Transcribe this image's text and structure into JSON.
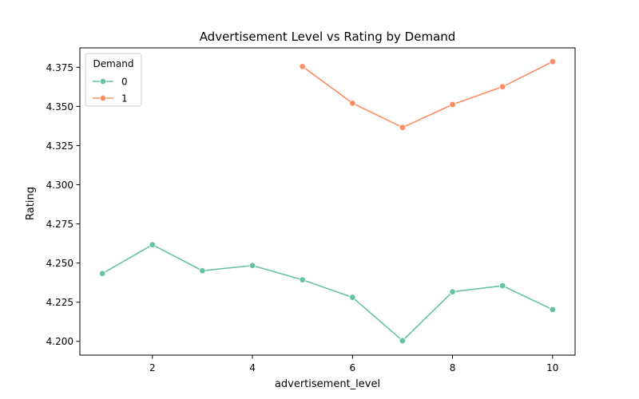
{
  "chart_data": {
    "type": "line",
    "title": "Advertisement Level vs Rating by Demand",
    "xlabel": "advertisement_level",
    "ylabel": "Rating",
    "xlim": [
      0.55,
      10.45
    ],
    "ylim": [
      4.1912,
      4.3874
    ],
    "xticks": [
      2,
      4,
      6,
      8,
      10
    ],
    "xtick_labels": [
      "2",
      "4",
      "6",
      "8",
      "10"
    ],
    "yticks": [
      4.2,
      4.225,
      4.25,
      4.275,
      4.3,
      4.325,
      4.35,
      4.375
    ],
    "ytick_labels": [
      "4.200",
      "4.225",
      "4.250",
      "4.275",
      "4.300",
      "4.325",
      "4.350",
      "4.375"
    ],
    "grid": false,
    "legend": {
      "title": "Demand",
      "placement": "top-left"
    },
    "series": [
      {
        "name": "0",
        "color": "#66c2a5",
        "marker": "circle",
        "x": [
          1,
          2,
          3,
          4,
          5,
          6,
          7,
          8,
          9,
          10
        ],
        "values": [
          4.2433,
          4.2617,
          4.2451,
          4.2484,
          4.2393,
          4.2281,
          4.2004,
          4.2316,
          4.2355,
          4.2203
        ]
      },
      {
        "name": "1",
        "color": "#fc8d62",
        "marker": "circle",
        "x": [
          5,
          6,
          7,
          8,
          9,
          10
        ],
        "values": [
          4.3755,
          4.3521,
          4.3366,
          4.3512,
          4.3626,
          4.3786
        ]
      }
    ]
  }
}
